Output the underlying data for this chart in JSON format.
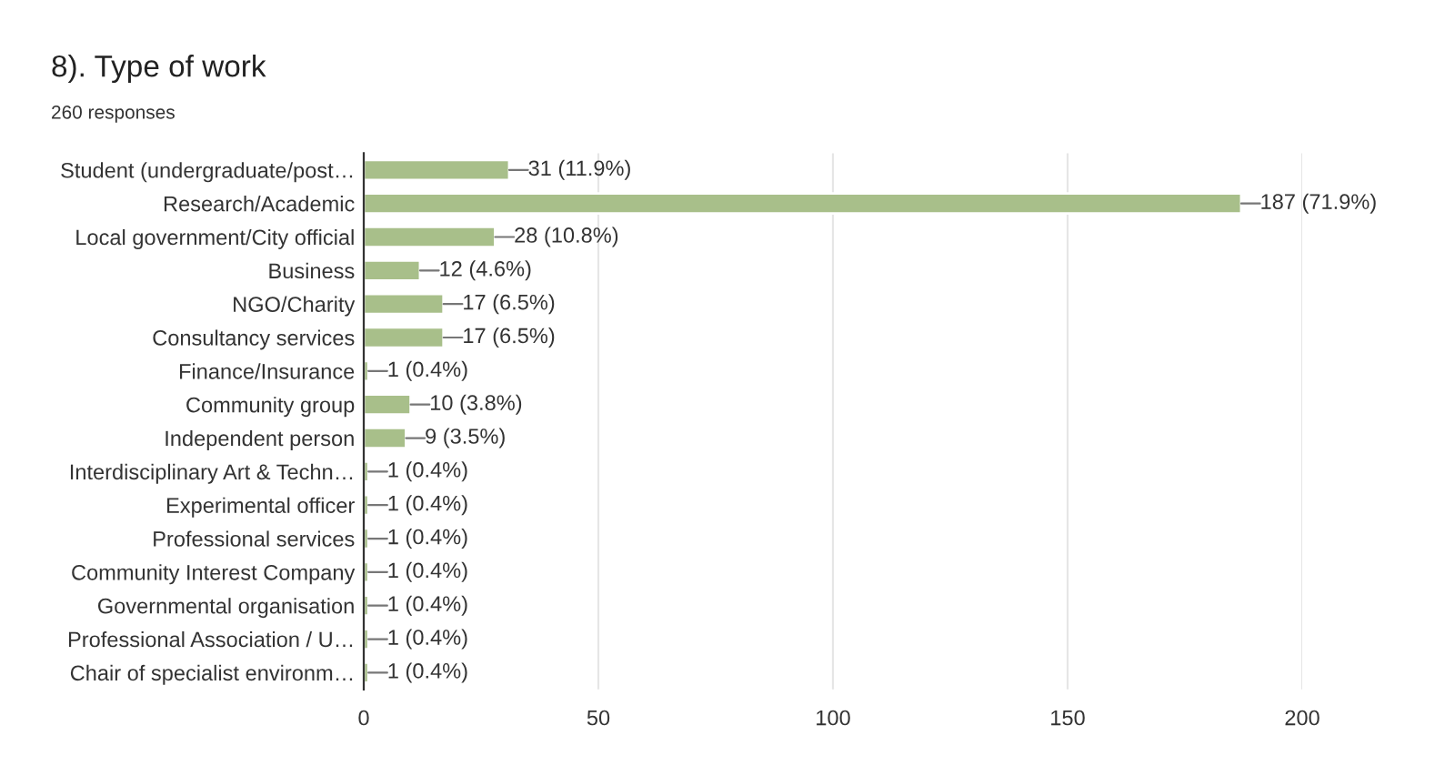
{
  "chart_data": {
    "type": "bar",
    "orientation": "horizontal",
    "title": "8). Type of work",
    "subtitle": "260 responses",
    "categories": [
      "Student (undergraduate/post…",
      "Research/Academic",
      "Local government/City official",
      "Business",
      "NGO/Charity",
      "Consultancy services",
      "Finance/Insurance",
      "Community group",
      "Independent person",
      "Interdisciplinary Art & Techn…",
      "Experimental officer",
      "Professional services",
      "Community Interest Company",
      "Governmental organisation",
      "Professional Association / U…",
      "Chair of specialist environm…"
    ],
    "values": [
      31,
      187,
      28,
      12,
      17,
      17,
      1,
      10,
      9,
      1,
      1,
      1,
      1,
      1,
      1,
      1
    ],
    "value_labels": [
      "31 (11.9%)",
      "187 (71.9%)",
      "28 (10.8%)",
      "12 (4.6%)",
      "17 (6.5%)",
      "17 (6.5%)",
      "1 (0.4%)",
      "10 (3.8%)",
      "9 (3.5%)",
      "1 (0.4%)",
      "1 (0.4%)",
      "1 (0.4%)",
      "1 (0.4%)",
      "1 (0.4%)",
      "1 (0.4%)",
      "1 (0.4%)"
    ],
    "color": "#a8bf8a",
    "xlim": [
      0,
      200
    ],
    "xticks": [
      0,
      50,
      100,
      150,
      200
    ],
    "grid": "x"
  }
}
